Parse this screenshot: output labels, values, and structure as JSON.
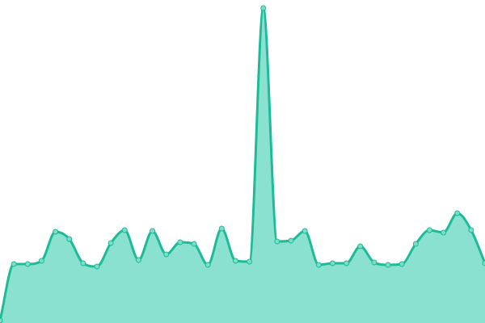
{
  "chart_data": {
    "type": "area",
    "title": "",
    "xlabel": "",
    "ylabel": "",
    "smooth": true,
    "grid": false,
    "axes_visible": false,
    "ylim": [
      0,
      400
    ],
    "x": [
      0,
      1,
      2,
      3,
      4,
      5,
      6,
      7,
      8,
      9,
      10,
      11,
      12,
      13,
      14,
      15,
      16,
      17,
      18,
      19,
      20,
      21,
      22,
      23,
      24,
      25,
      26,
      27,
      28,
      29,
      30,
      31,
      32,
      33,
      34,
      35
    ],
    "series": [
      {
        "values": [
          3,
          73,
          73,
          77,
          113,
          104,
          74,
          70,
          99,
          115,
          78,
          114,
          85,
          100,
          98,
          72,
          117,
          77,
          76,
          390,
          101,
          102,
          114,
          72,
          74,
          74,
          95,
          75,
          72,
          73,
          98,
          115,
          112,
          136,
          115,
          74
        ]
      }
    ],
    "colors": {
      "line": "#1dbb98",
      "fill": "#8ae1cf",
      "marker": "#7fdcc8"
    }
  }
}
